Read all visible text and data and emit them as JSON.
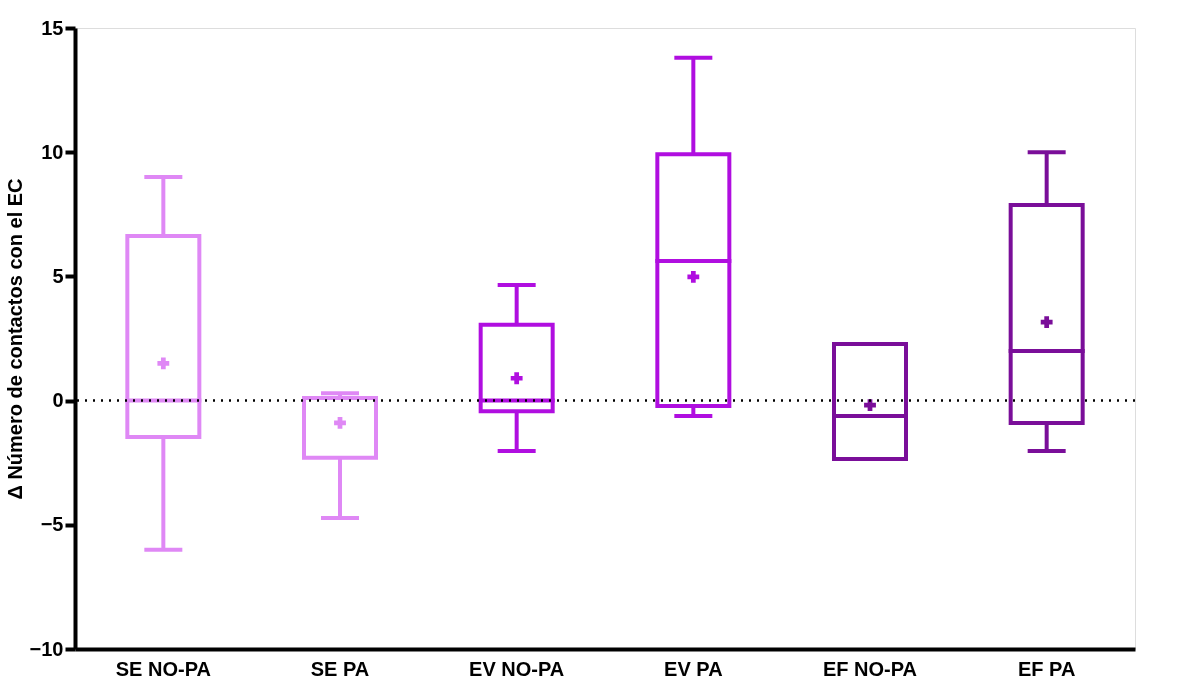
{
  "chart_data": {
    "type": "box",
    "ylabel": "Δ Número de contactos con el EC",
    "categories": [
      "SE NO-PA",
      "SE PA",
      "EV NO-PA",
      "EV PA",
      "EF NO-PA",
      "EF PA"
    ],
    "boxes": [
      {
        "low": -6.0,
        "q1": -1.47,
        "median": 0.0,
        "q3": 6.63,
        "high": 9.0,
        "mean": 1.5
      },
      {
        "low": -4.73,
        "q1": -2.3,
        "median": 0.1,
        "q3": 0.1,
        "high": 0.3,
        "mean": -0.9
      },
      {
        "low": -2.03,
        "q1": -0.43,
        "median": 0.0,
        "q3": 3.05,
        "high": 4.65,
        "mean": 0.9
      },
      {
        "low": -0.62,
        "q1": -0.22,
        "median": 5.62,
        "q3": 9.92,
        "high": 13.8,
        "mean": 4.98
      },
      {
        "low": -2.35,
        "q1": -2.35,
        "median": -0.62,
        "q3": 2.28,
        "high": 2.28,
        "mean": -0.18
      },
      {
        "low": -2.03,
        "q1": -0.9,
        "median": 2.0,
        "q3": 7.87,
        "high": 10.0,
        "mean": 3.16
      }
    ],
    "colors": [
      "#df88f5",
      "#df88f5",
      "#b00ee0",
      "#b00ee0",
      "#7a0e99",
      "#7a0e99"
    ],
    "ylim": [
      -10,
      15
    ],
    "yticks": [
      -10,
      -5,
      0,
      5,
      10,
      15
    ],
    "grid": false,
    "ref_lines": [
      {
        "axis": "y",
        "value": 0,
        "line_style": "dotted",
        "color": "#000000"
      }
    ]
  }
}
